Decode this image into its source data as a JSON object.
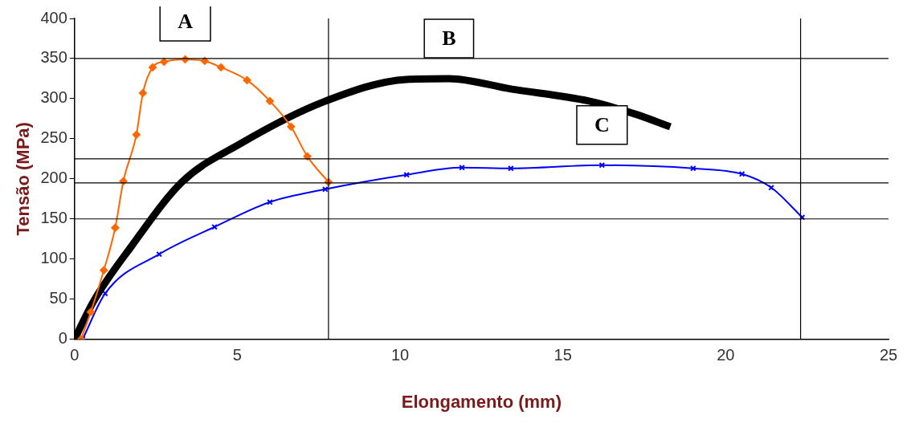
{
  "chart_data": {
    "type": "line",
    "xlabel": "Elongamento (mm)",
    "ylabel": "Tensão (MPa)",
    "xlim": [
      0,
      25
    ],
    "xticks": [
      0,
      5,
      10,
      15,
      20,
      25
    ],
    "ylim": [
      0,
      400
    ],
    "yticks": [
      0,
      50,
      100,
      150,
      200,
      250,
      300,
      350,
      400
    ],
    "grid": false,
    "legend": false,
    "series": [
      {
        "color": "#ff6600",
        "marker": "diamond",
        "x": [
          0.2,
          0.5,
          0.9,
          1.25,
          1.5,
          1.9,
          2.1,
          2.4,
          2.75,
          3.4,
          4,
          4.5,
          5.3,
          6,
          6.65,
          7.15,
          7.8
        ],
        "values": [
          0,
          34,
          86,
          139,
          197,
          255,
          307,
          339,
          346,
          349,
          347,
          339,
          323,
          297,
          265,
          228,
          196
        ]
      },
      {
        "color": "#000000",
        "marker": "none",
        "x": [
          0,
          0.58,
          1.75,
          3.3,
          5.1,
          7.65,
          10.2,
          11.5,
          13.4,
          15.8,
          17.2,
          18.3
        ],
        "values": [
          0,
          47,
          116,
          196,
          244,
          296,
          324,
          325,
          312,
          297,
          281,
          265
        ]
      },
      {
        "color": "#0000ff",
        "marker": "cross",
        "x": [
          0.25,
          0.94,
          2.6,
          4.3,
          6,
          7.7,
          10.2,
          11.9,
          13.4,
          16.2,
          19,
          20.5,
          21.4,
          22.35
        ],
        "values": [
          0,
          57,
          106,
          140,
          171,
          187,
          205,
          214,
          213,
          217,
          213,
          206,
          189,
          152
        ]
      }
    ],
    "ref_lines": [
      {
        "axis": "y",
        "value": 350
      },
      {
        "axis": "y",
        "value": 225
      },
      {
        "axis": "y",
        "value": 195
      },
      {
        "axis": "y",
        "value": 150
      },
      {
        "axis": "x",
        "value": 7.8
      },
      {
        "axis": "x",
        "value": 22.3
      }
    ],
    "annotations": [
      "A",
      "B",
      "C"
    ]
  }
}
